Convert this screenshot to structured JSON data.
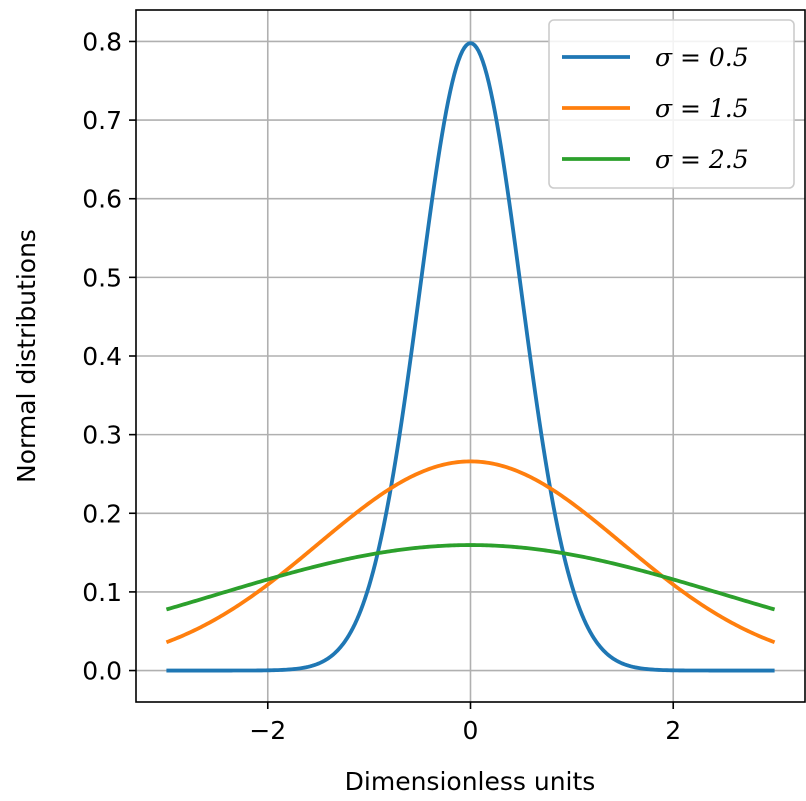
{
  "chart_data": {
    "type": "line",
    "title": "",
    "xlabel": "Dimensionless units",
    "ylabel": "Normal distributions",
    "xlim": [
      -3.3,
      3.3
    ],
    "ylim": [
      -0.04,
      0.84
    ],
    "xticks": [
      {
        "value": -2,
        "label": "−2"
      },
      {
        "value": 0,
        "label": "0"
      },
      {
        "value": 2,
        "label": "2"
      }
    ],
    "yticks": [
      {
        "value": 0.0,
        "label": "0.0"
      },
      {
        "value": 0.1,
        "label": "0.1"
      },
      {
        "value": 0.2,
        "label": "0.2"
      },
      {
        "value": 0.3,
        "label": "0.3"
      },
      {
        "value": 0.4,
        "label": "0.4"
      },
      {
        "value": 0.5,
        "label": "0.5"
      },
      {
        "value": 0.6,
        "label": "0.6"
      },
      {
        "value": 0.7,
        "label": "0.7"
      },
      {
        "value": 0.8,
        "label": "0.8"
      }
    ],
    "grid": true,
    "legend_position": "top-right",
    "x_range": [
      -3,
      3
    ],
    "series": [
      {
        "name": "σ = 0.5",
        "sigma": 0.5,
        "color": "#1f77b4"
      },
      {
        "name": "σ = 1.5",
        "sigma": 1.5,
        "color": "#ff7f0e"
      },
      {
        "name": "σ = 2.5",
        "sigma": 2.5,
        "color": "#2ca02c"
      }
    ]
  }
}
